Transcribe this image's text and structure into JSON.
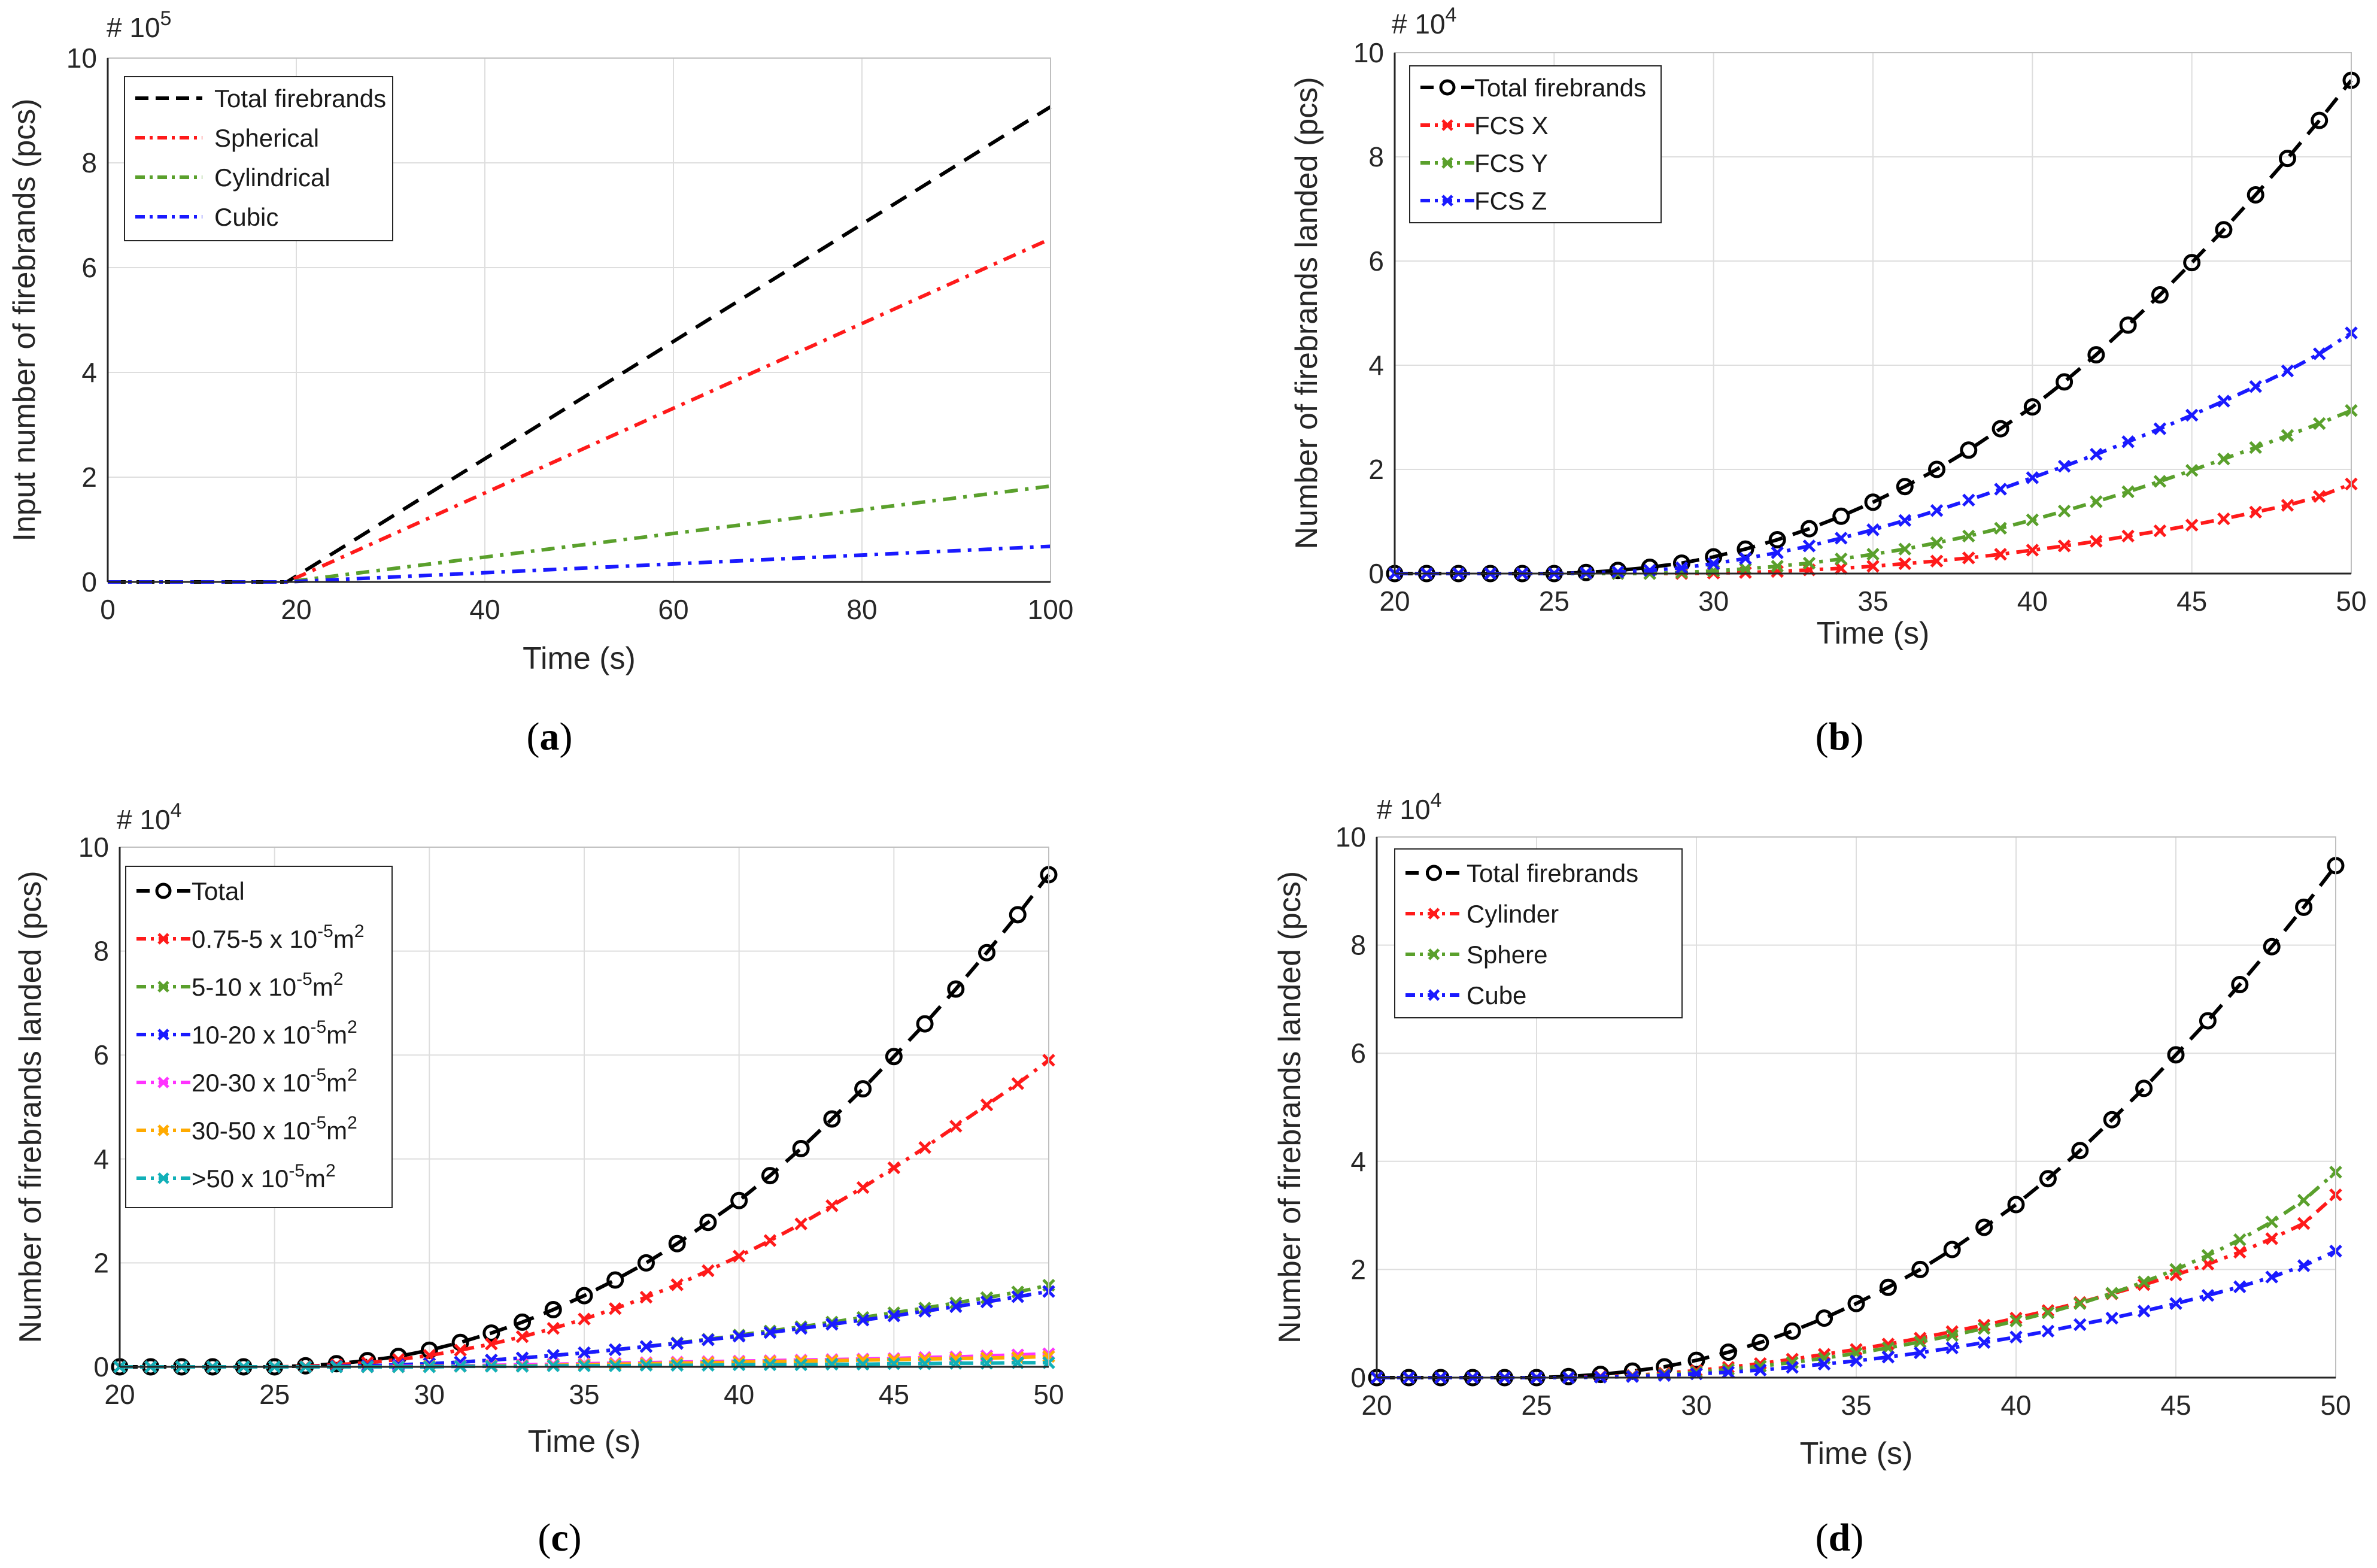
{
  "colors": {
    "total": "#000000",
    "red": "#ff1a1a",
    "green": "#5aa02c",
    "blue": "#1a1aff",
    "magenta": "#ff33ff",
    "orange": "#ffaa00",
    "cyan": "#11b0b8",
    "grid": "#dedede",
    "axis": "#262626"
  },
  "chart_data": [
    {
      "id": "a",
      "type": "line",
      "panel_label": [
        "(",
        "a",
        ")"
      ],
      "exponent": "# 10",
      "exponent_power": "5",
      "xlabel": "Time (s)",
      "ylabel": "Input number of firebrands (pcs)",
      "xlim": [
        0,
        100
      ],
      "ylim": [
        0,
        10
      ],
      "xticks": [
        0,
        20,
        40,
        60,
        80,
        100
      ],
      "yticks": [
        0,
        2,
        4,
        6,
        8,
        10
      ],
      "legend_position": "top-left",
      "series": [
        {
          "name": "Total firebrands",
          "color": "#000000",
          "dash": "dashed",
          "marker": "none",
          "x": [
            0,
            19,
            100
          ],
          "values": [
            0,
            0,
            9.07
          ]
        },
        {
          "name": "Spherical",
          "color": "#ff1a1a",
          "dash": "dashdot",
          "marker": "none",
          "x": [
            0,
            19,
            100
          ],
          "values": [
            0,
            0,
            6.55
          ]
        },
        {
          "name": "Cylindrical",
          "color": "#5aa02c",
          "dash": "dashdot",
          "marker": "none",
          "x": [
            0,
            19,
            100
          ],
          "values": [
            0,
            0,
            1.83
          ]
        },
        {
          "name": "Cubic",
          "color": "#1a1aff",
          "dash": "dashdot",
          "marker": "none",
          "x": [
            0,
            19,
            100
          ],
          "values": [
            0,
            0,
            0.68
          ]
        }
      ]
    },
    {
      "id": "b",
      "type": "line",
      "panel_label": [
        "(",
        "b",
        ")"
      ],
      "exponent": "# 10",
      "exponent_power": "4",
      "xlabel": "Time (s)",
      "ylabel": "Number of firebrands landed (pcs)",
      "xlim": [
        20,
        50
      ],
      "ylim": [
        0,
        10
      ],
      "xticks": [
        20,
        25,
        30,
        35,
        40,
        45,
        50
      ],
      "yticks": [
        0,
        2,
        4,
        6,
        8,
        10
      ],
      "legend_position": "top-left",
      "x": [
        20,
        21,
        22,
        23,
        24,
        25,
        26,
        27,
        28,
        29,
        30,
        31,
        32,
        33,
        34,
        35,
        36,
        37,
        38,
        39,
        40,
        41,
        42,
        43,
        44,
        45,
        46,
        47,
        48,
        49,
        50
      ],
      "series": [
        {
          "name": "Total firebrands",
          "color": "#000000",
          "dash": "dashed",
          "marker": "circle",
          "values": [
            0,
            0,
            0,
            0,
            0,
            0,
            0.02,
            0.06,
            0.12,
            0.2,
            0.32,
            0.47,
            0.65,
            0.86,
            1.1,
            1.37,
            1.67,
            2.0,
            2.37,
            2.78,
            3.2,
            3.68,
            4.2,
            4.77,
            5.35,
            5.97,
            6.6,
            7.27,
            7.97,
            8.7,
            9.47
          ]
        },
        {
          "name": "FCS X",
          "color": "#ff1a1a",
          "dash": "dashdot",
          "marker": "x",
          "values": [
            0,
            0,
            0,
            0,
            0,
            0,
            0,
            0,
            0,
            0,
            0.01,
            0.02,
            0.04,
            0.07,
            0.1,
            0.14,
            0.19,
            0.24,
            0.3,
            0.37,
            0.45,
            0.53,
            0.62,
            0.72,
            0.82,
            0.93,
            1.05,
            1.18,
            1.31,
            1.48,
            1.72
          ]
        },
        {
          "name": "FCS Y",
          "color": "#5aa02c",
          "dash": "dashdot",
          "marker": "x",
          "values": [
            0,
            0,
            0,
            0,
            0,
            0,
            0,
            0,
            0,
            0.02,
            0.05,
            0.09,
            0.14,
            0.2,
            0.28,
            0.37,
            0.47,
            0.59,
            0.72,
            0.87,
            1.03,
            1.2,
            1.38,
            1.57,
            1.77,
            1.98,
            2.2,
            2.42,
            2.65,
            2.88,
            3.13
          ]
        },
        {
          "name": "FCS Z",
          "color": "#1a1aff",
          "dash": "dashdot",
          "marker": "x",
          "values": [
            0,
            0,
            0,
            0,
            0,
            0,
            0.01,
            0.03,
            0.06,
            0.11,
            0.19,
            0.29,
            0.4,
            0.53,
            0.68,
            0.84,
            1.02,
            1.21,
            1.41,
            1.62,
            1.84,
            2.06,
            2.29,
            2.53,
            2.78,
            3.04,
            3.31,
            3.59,
            3.89,
            4.22,
            4.62
          ]
        }
      ]
    },
    {
      "id": "c",
      "type": "line",
      "panel_label": [
        "(",
        "c",
        ")"
      ],
      "exponent": "# 10",
      "exponent_power": "4",
      "xlabel": "Time (s)",
      "ylabel": "Number of firebrands landed (pcs)",
      "xlim": [
        20,
        50
      ],
      "ylim": [
        0,
        10
      ],
      "xticks": [
        20,
        25,
        30,
        35,
        40,
        45,
        50
      ],
      "yticks": [
        0,
        2,
        4,
        6,
        8,
        10
      ],
      "legend_position": "top-left",
      "x": [
        20,
        21,
        22,
        23,
        24,
        25,
        26,
        27,
        28,
        29,
        30,
        31,
        32,
        33,
        34,
        35,
        36,
        37,
        38,
        39,
        40,
        41,
        42,
        43,
        44,
        45,
        46,
        47,
        48,
        49,
        50
      ],
      "series": [
        {
          "name": "Total",
          "color": "#000000",
          "dash": "dashed",
          "marker": "circle",
          "values": [
            0,
            0,
            0,
            0,
            0,
            0,
            0.02,
            0.06,
            0.12,
            0.2,
            0.32,
            0.47,
            0.65,
            0.86,
            1.1,
            1.37,
            1.67,
            2.0,
            2.37,
            2.78,
            3.2,
            3.68,
            4.2,
            4.77,
            5.35,
            5.97,
            6.6,
            7.27,
            7.97,
            8.7,
            9.47
          ]
        },
        {
          "name": "0.75-5 x 10",
          "name_sup": "-5",
          "name_unit": "m",
          "name_unit_sup": "2",
          "color": "#ff1a1a",
          "dash": "dashdot",
          "marker": "x",
          "values": [
            0,
            0,
            0,
            0,
            0,
            0,
            0.01,
            0.04,
            0.08,
            0.14,
            0.22,
            0.32,
            0.44,
            0.58,
            0.74,
            0.92,
            1.12,
            1.34,
            1.58,
            1.85,
            2.13,
            2.43,
            2.75,
            3.1,
            3.45,
            3.83,
            4.22,
            4.63,
            5.04,
            5.45,
            5.9
          ]
        },
        {
          "name": "5-10 x 10",
          "name_sup": "-5",
          "name_unit": "m",
          "name_unit_sup": "2",
          "color": "#5aa02c",
          "dash": "dashdot",
          "marker": "x",
          "values": [
            0,
            0,
            0,
            0,
            0,
            0,
            0,
            0.01,
            0.02,
            0.04,
            0.06,
            0.09,
            0.13,
            0.17,
            0.22,
            0.27,
            0.33,
            0.39,
            0.46,
            0.53,
            0.61,
            0.69,
            0.77,
            0.86,
            0.95,
            1.04,
            1.13,
            1.23,
            1.33,
            1.44,
            1.57
          ]
        },
        {
          "name": "10-20 x 10",
          "name_sup": "-5",
          "name_unit": "m",
          "name_unit_sup": "2",
          "color": "#1a1aff",
          "dash": "dashdot",
          "marker": "x",
          "values": [
            0,
            0,
            0,
            0,
            0,
            0,
            0,
            0.01,
            0.02,
            0.04,
            0.06,
            0.09,
            0.13,
            0.17,
            0.22,
            0.27,
            0.33,
            0.39,
            0.45,
            0.52,
            0.59,
            0.66,
            0.74,
            0.82,
            0.9,
            0.98,
            1.07,
            1.16,
            1.25,
            1.35,
            1.45
          ]
        },
        {
          "name": "20-30 x 10",
          "name_sup": "-5",
          "name_unit": "m",
          "name_unit_sup": "2",
          "color": "#ff33ff",
          "dash": "dashdot",
          "marker": "x",
          "values": [
            0,
            0,
            0,
            0,
            0,
            0,
            0,
            0,
            0,
            0.01,
            0.01,
            0.02,
            0.03,
            0.04,
            0.05,
            0.06,
            0.07,
            0.08,
            0.09,
            0.1,
            0.11,
            0.12,
            0.13,
            0.14,
            0.15,
            0.16,
            0.18,
            0.19,
            0.21,
            0.23,
            0.25
          ]
        },
        {
          "name": "30-50 x 10",
          "name_sup": "-5",
          "name_unit": "m",
          "name_unit_sup": "2",
          "color": "#ffaa00",
          "dash": "dashdot",
          "marker": "x",
          "values": [
            0,
            0,
            0,
            0,
            0,
            0,
            0,
            0,
            0,
            0,
            0.01,
            0.01,
            0.02,
            0.02,
            0.03,
            0.04,
            0.05,
            0.06,
            0.07,
            0.08,
            0.09,
            0.1,
            0.11,
            0.12,
            0.13,
            0.14,
            0.15,
            0.16,
            0.17,
            0.18,
            0.2
          ]
        },
        {
          "name": ">50 x 10",
          "name_sup": "-5",
          "name_unit": "m",
          "name_unit_sup": "2",
          "color": "#11b0b8",
          "dash": "dashdot",
          "marker": "x",
          "values": [
            0,
            0,
            0,
            0,
            0,
            0,
            0,
            0,
            0,
            0,
            0,
            0.01,
            0.01,
            0.01,
            0.02,
            0.02,
            0.02,
            0.03,
            0.03,
            0.03,
            0.04,
            0.04,
            0.04,
            0.05,
            0.05,
            0.06,
            0.06,
            0.07,
            0.07,
            0.08,
            0.08
          ]
        }
      ]
    },
    {
      "id": "d",
      "type": "line",
      "panel_label": [
        "(",
        "d",
        ")"
      ],
      "exponent": "# 10",
      "exponent_power": "4",
      "xlabel": "Time (s)",
      "ylabel": "Number of firebrands landed (pcs)",
      "xlim": [
        20,
        50
      ],
      "ylim": [
        0,
        10
      ],
      "xticks": [
        20,
        25,
        30,
        35,
        40,
        45,
        50
      ],
      "yticks": [
        0,
        2,
        4,
        6,
        8,
        10
      ],
      "legend_position": "top-left",
      "x": [
        20,
        21,
        22,
        23,
        24,
        25,
        26,
        27,
        28,
        29,
        30,
        31,
        32,
        33,
        34,
        35,
        36,
        37,
        38,
        39,
        40,
        41,
        42,
        43,
        44,
        45,
        46,
        47,
        48,
        49,
        50
      ],
      "series": [
        {
          "name": "Total firebrands",
          "color": "#000000",
          "dash": "dashed",
          "marker": "circle",
          "values": [
            0,
            0,
            0,
            0,
            0,
            0,
            0.02,
            0.06,
            0.12,
            0.2,
            0.32,
            0.47,
            0.65,
            0.86,
            1.1,
            1.37,
            1.67,
            2.0,
            2.37,
            2.78,
            3.2,
            3.68,
            4.2,
            4.77,
            5.35,
            5.97,
            6.6,
            7.27,
            7.97,
            8.7,
            9.47
          ]
        },
        {
          "name": "Cylinder",
          "color": "#ff1a1a",
          "dash": "dashdot",
          "marker": "x",
          "values": [
            0,
            0,
            0,
            0,
            0,
            0,
            0,
            0.02,
            0.04,
            0.08,
            0.13,
            0.19,
            0.26,
            0.34,
            0.43,
            0.52,
            0.62,
            0.73,
            0.85,
            0.97,
            1.1,
            1.24,
            1.39,
            1.55,
            1.72,
            1.9,
            2.1,
            2.32,
            2.57,
            2.85,
            3.38
          ]
        },
        {
          "name": "Sphere",
          "color": "#5aa02c",
          "dash": "dashdot",
          "marker": "x",
          "values": [
            0,
            0,
            0,
            0,
            0,
            0,
            0,
            0.01,
            0.03,
            0.06,
            0.1,
            0.15,
            0.21,
            0.28,
            0.36,
            0.45,
            0.55,
            0.66,
            0.78,
            0.91,
            1.05,
            1.2,
            1.37,
            1.56,
            1.77,
            2.0,
            2.26,
            2.55,
            2.88,
            3.28,
            3.8
          ]
        },
        {
          "name": "Cube",
          "color": "#1a1aff",
          "dash": "dashdot",
          "marker": "x",
          "values": [
            0,
            0,
            0,
            0,
            0,
            0,
            0,
            0.01,
            0.02,
            0.04,
            0.07,
            0.1,
            0.14,
            0.19,
            0.25,
            0.31,
            0.38,
            0.46,
            0.55,
            0.65,
            0.75,
            0.86,
            0.98,
            1.1,
            1.23,
            1.37,
            1.52,
            1.68,
            1.86,
            2.07,
            2.34
          ]
        }
      ]
    }
  ]
}
